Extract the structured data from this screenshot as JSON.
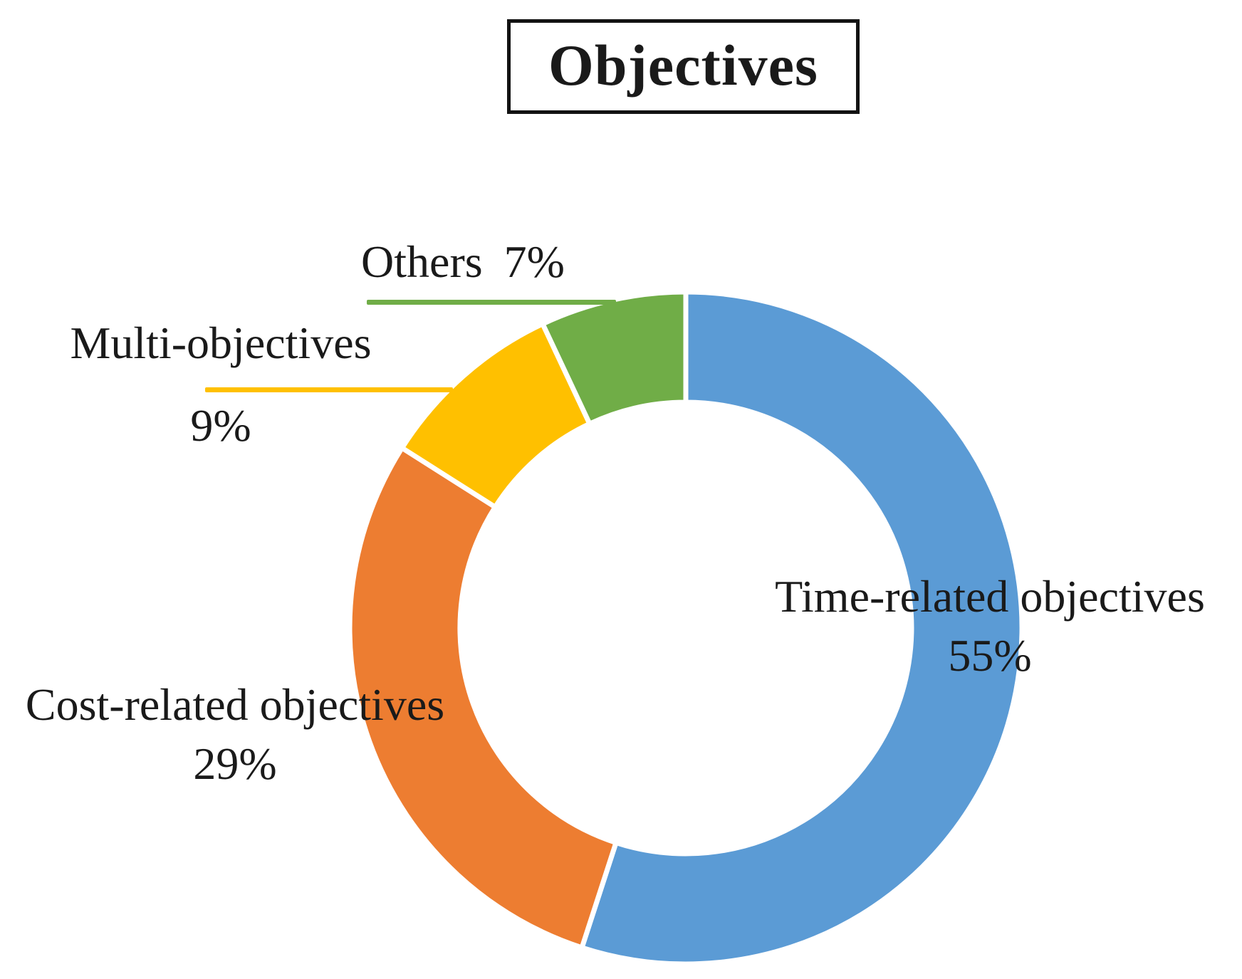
{
  "chart_data": {
    "type": "doughnut",
    "title": "Objectives",
    "unit": "%",
    "start_angle_deg": 0,
    "direction": "clockwise",
    "hole_ratio": 0.67,
    "legend": "none",
    "segments": [
      {
        "label": "Time-related objectives",
        "value": 55,
        "pct_label": "55%",
        "color": "#5B9BD5"
      },
      {
        "label": "Cost-related objectives",
        "value": 29,
        "pct_label": "29%",
        "color": "#ED7D31"
      },
      {
        "label": "Multi-objectives",
        "value": 9,
        "pct_label": "9%",
        "color": "#FFC000"
      },
      {
        "label": "Others",
        "value": 7,
        "pct_label": "7%",
        "color": "#70AD47"
      }
    ]
  }
}
